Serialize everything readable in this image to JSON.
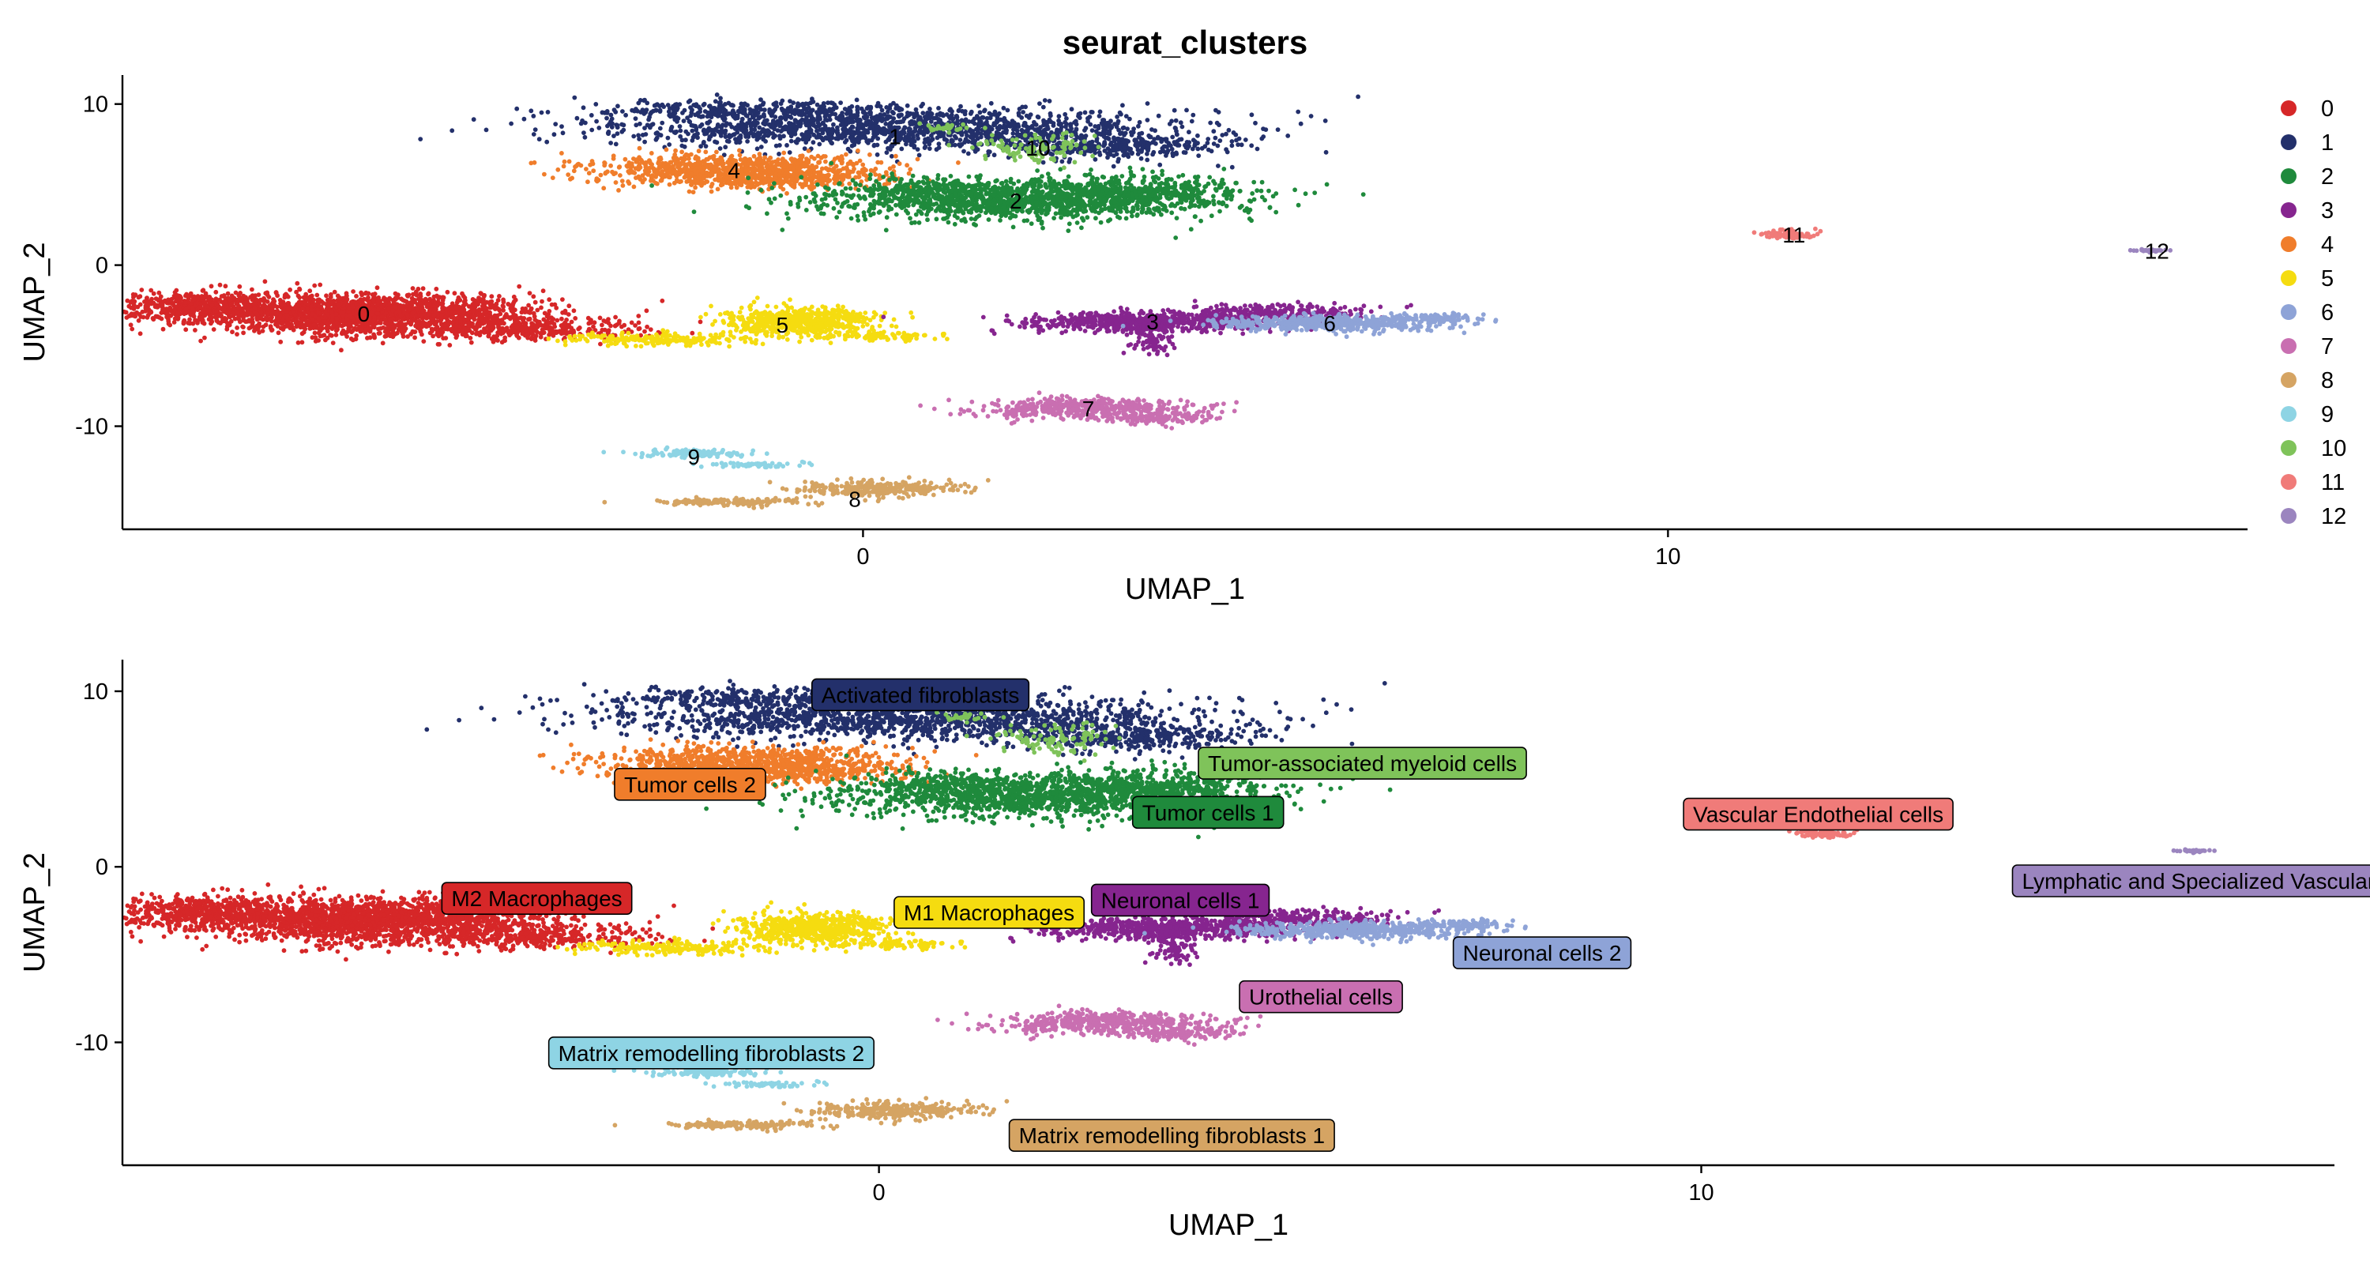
{
  "title": "seurat_clusters",
  "colors": {
    "0": "#D62728",
    "1": "#23306B",
    "2": "#1F8A3C",
    "3": "#86258F",
    "4": "#F07D2B",
    "5": "#F5DC10",
    "6": "#8EA3D7",
    "7": "#C96FB1",
    "8": "#D5A463",
    "9": "#8ED4E4",
    "10": "#7FC35A",
    "11": "#F07B79",
    "12": "#9B85BF"
  },
  "legend": {
    "items": [
      {
        "id": "0",
        "label": "0"
      },
      {
        "id": "1",
        "label": "1"
      },
      {
        "id": "2",
        "label": "2"
      },
      {
        "id": "3",
        "label": "3"
      },
      {
        "id": "4",
        "label": "4"
      },
      {
        "id": "5",
        "label": "5"
      },
      {
        "id": "6",
        "label": "6"
      },
      {
        "id": "7",
        "label": "7"
      },
      {
        "id": "8",
        "label": "8"
      },
      {
        "id": "9",
        "label": "9"
      },
      {
        "id": "10",
        "label": "10"
      },
      {
        "id": "11",
        "label": "11"
      },
      {
        "id": "12",
        "label": "12"
      }
    ]
  },
  "chart_data": [
    {
      "type": "scatter",
      "title": "seurat_clusters",
      "xlabel": "UMAP_1",
      "ylabel": "UMAP_2",
      "xlim": [
        -9.2,
        17.2
      ],
      "ylim": [
        -16.4,
        11.8
      ],
      "xticks": [
        0,
        10
      ],
      "xtick_labels": [
        "0",
        "10"
      ],
      "yticks": [
        -10,
        0,
        10
      ],
      "ytick_labels": [
        "-10",
        "0",
        "10"
      ],
      "legend_position": "right",
      "grid": false,
      "clusters": [
        {
          "id": "0",
          "label": "0",
          "center": [
            -6.2,
            -3.0
          ]
        },
        {
          "id": "1",
          "label": "1",
          "center": [
            0.4,
            8.0
          ]
        },
        {
          "id": "2",
          "label": "2",
          "center": [
            1.9,
            4.0
          ]
        },
        {
          "id": "3",
          "label": "3",
          "center": [
            3.6,
            -3.5
          ]
        },
        {
          "id": "4",
          "label": "4",
          "center": [
            -1.6,
            5.9
          ]
        },
        {
          "id": "5",
          "label": "5",
          "center": [
            -1.0,
            -3.7
          ]
        },
        {
          "id": "6",
          "label": "6",
          "center": [
            5.8,
            -3.6
          ]
        },
        {
          "id": "7",
          "label": "7",
          "center": [
            2.8,
            -8.9
          ]
        },
        {
          "id": "8",
          "label": "8",
          "center": [
            -0.1,
            -14.5
          ]
        },
        {
          "id": "9",
          "label": "9",
          "center": [
            -2.1,
            -11.9
          ]
        },
        {
          "id": "10",
          "label": "10",
          "center": [
            2.1,
            7.3
          ]
        },
        {
          "id": "11",
          "label": "11",
          "center": [
            11.5,
            1.9
          ]
        },
        {
          "id": "12",
          "label": "12",
          "center": [
            16.0,
            0.9
          ]
        }
      ]
    },
    {
      "type": "scatter",
      "xlabel": "UMAP_1",
      "ylabel": "UMAP_2",
      "xlim": [
        -9.2,
        17.7
      ],
      "ylim": [
        -17.0,
        11.8
      ],
      "xticks": [
        0,
        10
      ],
      "xtick_labels": [
        "0",
        "10"
      ],
      "yticks": [
        -10,
        0,
        10
      ],
      "ytick_labels": [
        "-10",
        "0",
        "10"
      ],
      "grid": false,
      "annotations": [
        {
          "cluster": "1",
          "label": "Activated fibroblasts",
          "at": [
            -0.7,
            9.8
          ]
        },
        {
          "cluster": "10",
          "label": "Tumor-associated myeloid cells",
          "at": [
            4.0,
            5.9
          ]
        },
        {
          "cluster": "4",
          "label": "Tumor cells 2",
          "at": [
            -3.1,
            4.7
          ]
        },
        {
          "cluster": "2",
          "label": "Tumor cells 1",
          "at": [
            3.2,
            3.1
          ]
        },
        {
          "cluster": "11",
          "label": "Vascular Endothelial cells",
          "at": [
            9.9,
            3.0
          ]
        },
        {
          "cluster": "12",
          "label": "Lymphatic and Specialized Vascular Endothelial Cells",
          "at": [
            13.9,
            -0.8
          ]
        },
        {
          "cluster": "0",
          "label": "M2 Macrophages",
          "at": [
            -5.2,
            -1.8
          ]
        },
        {
          "cluster": "5",
          "label": "M1 Macrophages",
          "at": [
            0.3,
            -2.6
          ]
        },
        {
          "cluster": "3",
          "label": "Neuronal cells 1",
          "at": [
            2.7,
            -1.9
          ]
        },
        {
          "cluster": "6",
          "label": "Neuronal cells 2",
          "at": [
            7.1,
            -4.9
          ]
        },
        {
          "cluster": "7",
          "label": "Urothelial cells",
          "at": [
            4.5,
            -7.4
          ]
        },
        {
          "cluster": "9",
          "label": "Matrix remodelling fibroblasts 2",
          "at": [
            -3.9,
            -10.6
          ]
        },
        {
          "cluster": "8",
          "label": "Matrix remodelling fibroblasts 1",
          "at": [
            1.7,
            -15.3
          ]
        }
      ]
    }
  ]
}
